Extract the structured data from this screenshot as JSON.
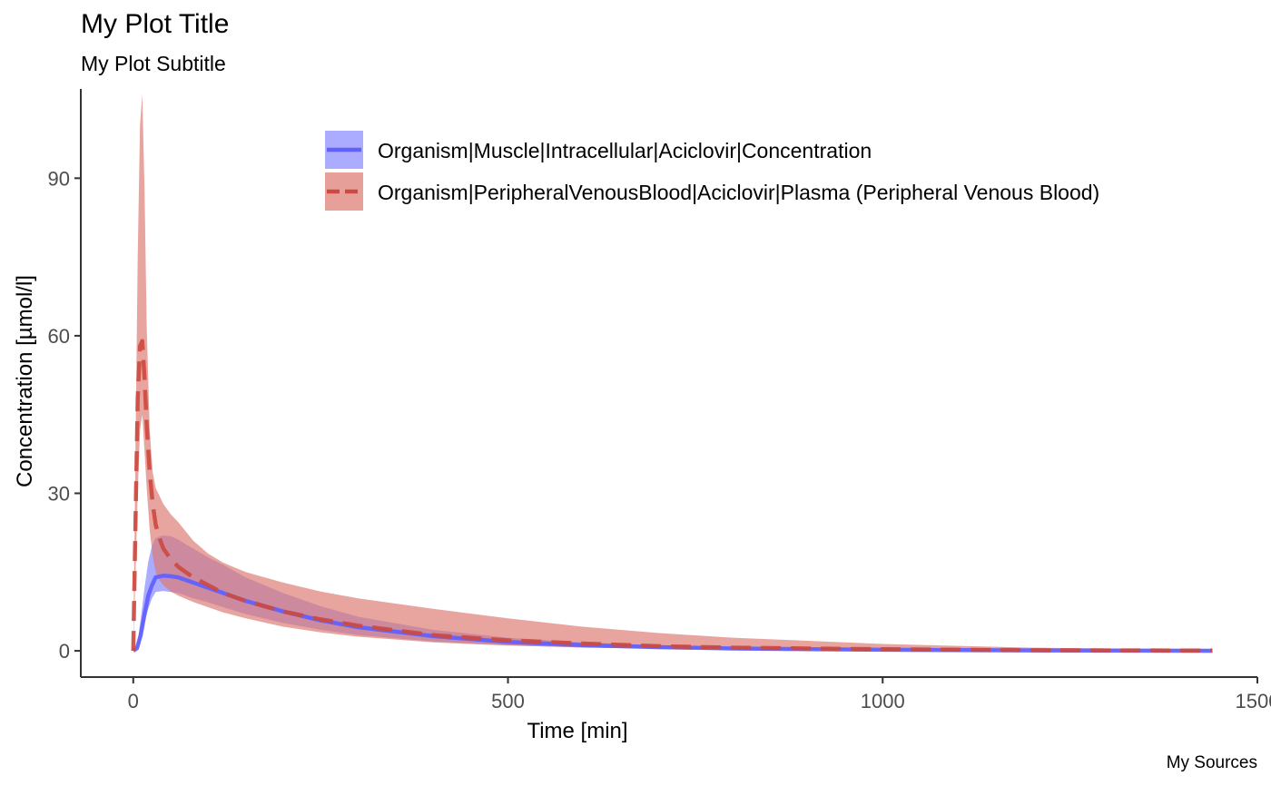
{
  "title": "My Plot Title",
  "subtitle": "My Plot Subtitle",
  "caption": "My Sources",
  "chart_data": {
    "type": "line",
    "xlabel": "Time [min]",
    "ylabel": "Concentration [µmol/l]",
    "xlim": [
      -70,
      1500
    ],
    "ylim": [
      -5,
      107
    ],
    "x_ticks": [
      0,
      500,
      1000,
      1500
    ],
    "y_ticks": [
      0,
      30,
      60,
      90
    ],
    "grid": false,
    "legend_position": "top-right",
    "series": [
      {
        "name": "Organism|Muscle|Intracellular|Aciclovir|Concentration",
        "color": "#6060ff",
        "ribbon_color": "#8b8bff",
        "linetype": "solid",
        "x": [
          0,
          5,
          10,
          15,
          20,
          25,
          30,
          40,
          50,
          60,
          70,
          80,
          100,
          120,
          150,
          200,
          250,
          300,
          400,
          500,
          600,
          700,
          800,
          1000,
          1200,
          1440
        ],
        "y": [
          0,
          0.5,
          3,
          7,
          10.5,
          12.5,
          14,
          14.3,
          14.2,
          14,
          13.5,
          13,
          12,
          11,
          9.5,
          7.5,
          5.8,
          4.5,
          2.8,
          1.7,
          1.1,
          0.7,
          0.45,
          0.2,
          0.08,
          0.02
        ],
        "lower": [
          0,
          0.3,
          2,
          5.5,
          8,
          10,
          11.2,
          11.4,
          11.2,
          11,
          10.5,
          10,
          9.2,
          8.3,
          7,
          5.3,
          4,
          3,
          1.8,
          1.05,
          0.6,
          0.4,
          0.25,
          0.1,
          0.04,
          0.01
        ],
        "upper": [
          0,
          1,
          6,
          12,
          17,
          20,
          21.5,
          22,
          21.8,
          21.2,
          20.3,
          19.5,
          17.8,
          16.4,
          14,
          11,
          8.5,
          6.5,
          4,
          2.5,
          1.6,
          1.1,
          0.7,
          0.35,
          0.15,
          0.04
        ]
      },
      {
        "name": "Organism|PeripheralVenousBlood|Aciclovir|Plasma (Peripheral Venous Blood)",
        "color": "#cc4a40",
        "ribbon_color": "#dd7a72",
        "linetype": "dashed",
        "x": [
          0,
          3,
          6,
          9,
          12,
          15,
          18,
          22,
          26,
          30,
          35,
          40,
          50,
          60,
          80,
          100,
          120,
          150,
          200,
          250,
          300,
          400,
          500,
          600,
          700,
          800,
          1000,
          1200,
          1440
        ],
        "y": [
          0,
          25,
          48,
          58,
          59,
          52,
          43,
          34,
          28,
          24,
          21.5,
          19.5,
          17.5,
          16,
          14,
          12.5,
          11,
          9.5,
          7.5,
          6,
          4.8,
          3,
          2,
          1.4,
          0.9,
          0.6,
          0.3,
          0.12,
          0.04
        ],
        "lower": [
          0,
          15,
          30,
          42,
          45,
          38,
          31,
          23,
          18,
          15,
          13.5,
          12.5,
          11.3,
          10.5,
          9.3,
          8.3,
          7.3,
          6.2,
          4.6,
          3.5,
          2.7,
          1.6,
          1,
          0.65,
          0.4,
          0.25,
          0.12,
          0.05,
          0.01
        ],
        "upper": [
          0,
          40,
          75,
          100,
          106,
          88,
          62,
          42,
          34,
          31,
          29.5,
          28,
          26,
          24.5,
          21,
          18.5,
          16.8,
          15,
          13,
          11.3,
          10,
          8,
          6.2,
          4.6,
          3.4,
          2.5,
          1.3,
          0.6,
          0.2
        ]
      }
    ]
  }
}
